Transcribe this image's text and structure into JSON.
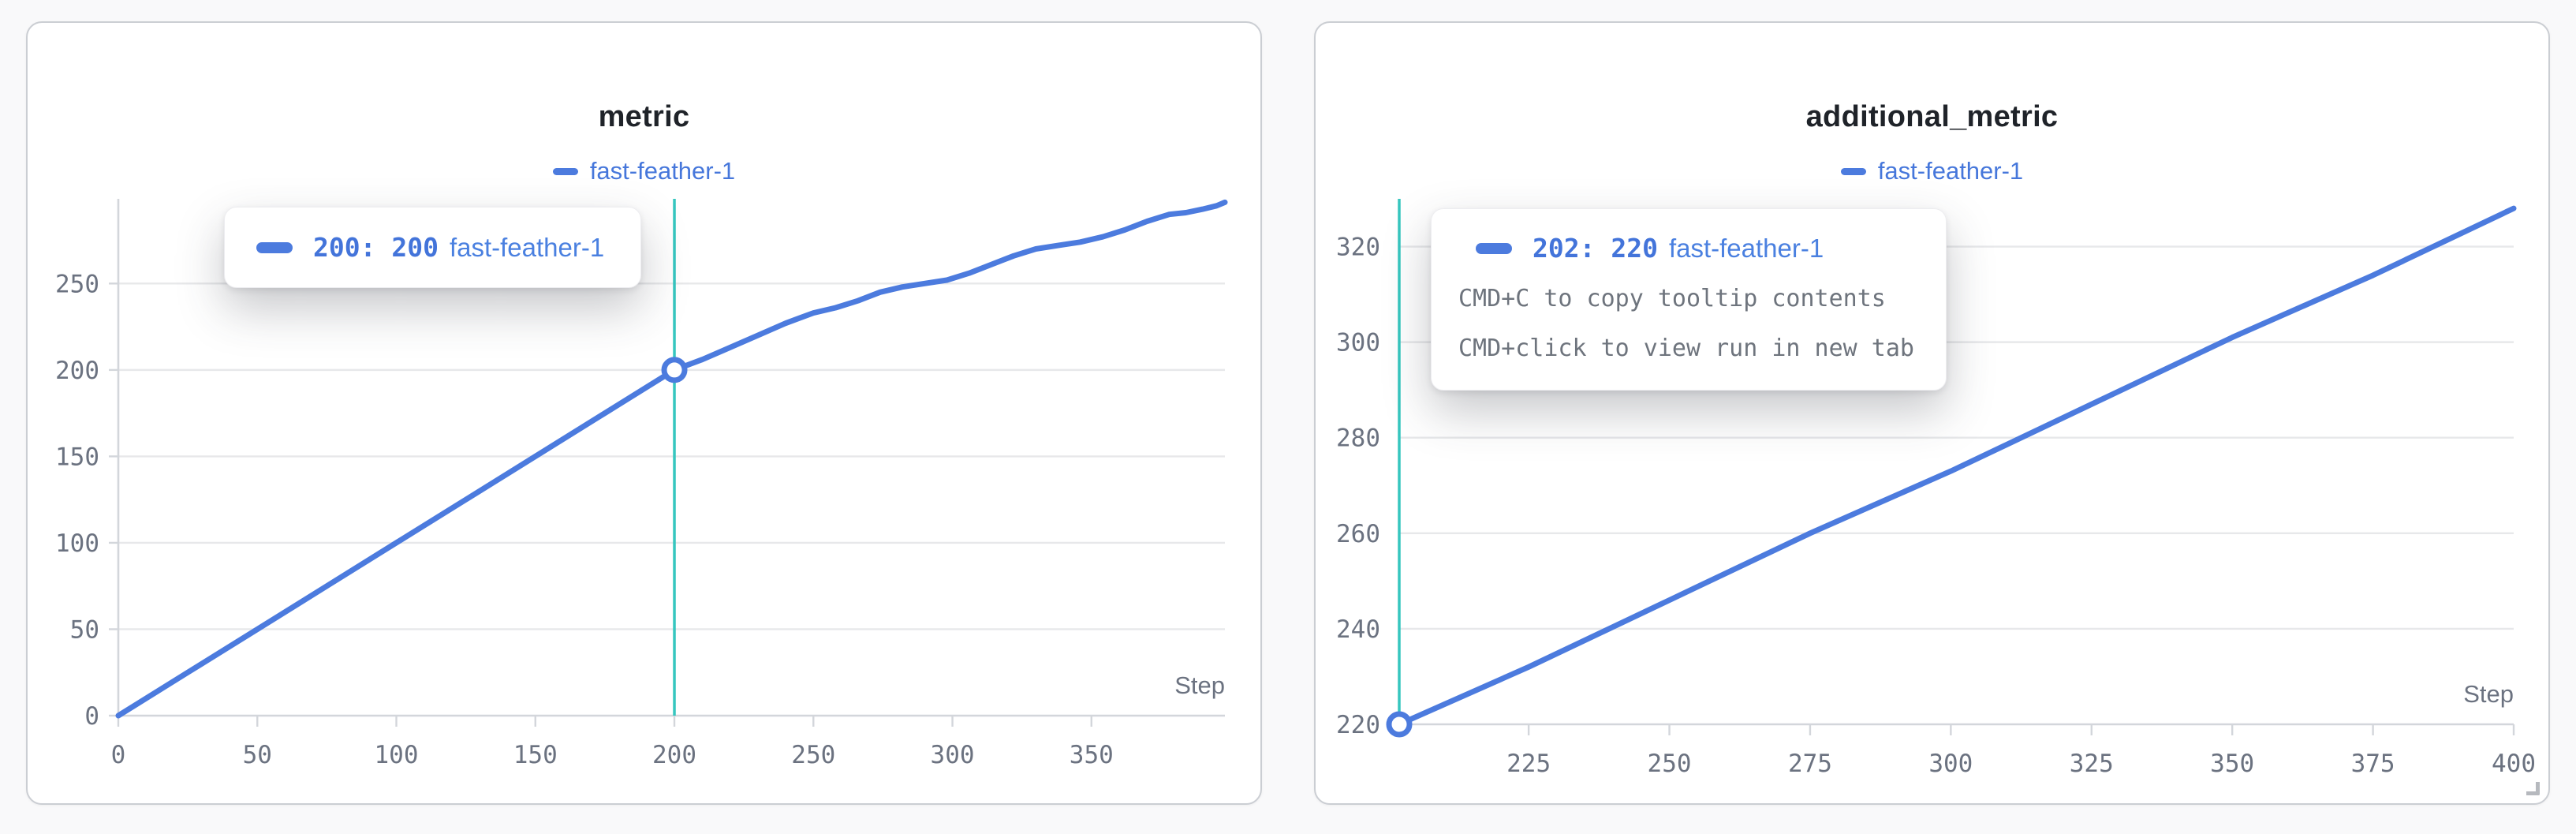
{
  "page": {
    "background": "#f9f9fa"
  },
  "colors": {
    "run_blue": "#4c7bde",
    "tooltip_value_blue": "#4374da",
    "crosshair_teal": "#36c6bf",
    "grid_gray": "#e7e8ea",
    "axis_gray": "#d3d6db",
    "tick_text_gray": "#6b7280",
    "helper_text_gray": "#6e747d",
    "title_dark": "#1f2329"
  },
  "panels": [
    {
      "title": "metric",
      "legend": {
        "label": "fast-feather-1",
        "swatch": "run-line-swatch"
      },
      "xlabel": "Step",
      "tooltip": {
        "value": "200: 200",
        "run": "fast-feather-1"
      }
    },
    {
      "title": "additional_metric",
      "legend": {
        "label": "fast-feather-1",
        "swatch": "run-line-swatch"
      },
      "xlabel": "Step",
      "tooltip": {
        "value": "202: 220",
        "run": "fast-feather-1",
        "helper_1": "CMD+C to copy tooltip contents",
        "helper_2": "CMD+click to view run in new tab"
      }
    }
  ],
  "chart_data": [
    {
      "type": "line",
      "title": "metric",
      "xlabel": "Step",
      "legend": [
        "fast-feather-1"
      ],
      "legend_position": "top-center",
      "grid": "horizontal-only",
      "xlim": [
        0,
        398
      ],
      "ylim": [
        0,
        299
      ],
      "xticks": [
        0,
        50,
        100,
        150,
        200,
        250,
        300,
        350
      ],
      "yticks": [
        0,
        50,
        100,
        150,
        200,
        250
      ],
      "crosshair": {
        "x": 200,
        "color": "#36c6bf"
      },
      "hover_marker": {
        "x": 200,
        "y": 200
      },
      "series": [
        {
          "name": "fast-feather-1",
          "color": "#4c7bde",
          "points": [
            [
              0,
              0
            ],
            [
              25,
              25
            ],
            [
              50,
              50
            ],
            [
              75,
              75
            ],
            [
              100,
              100
            ],
            [
              125,
              125
            ],
            [
              150,
              150
            ],
            [
              175,
              175
            ],
            [
              200,
              200
            ],
            [
              210,
              206
            ],
            [
              220,
              213
            ],
            [
              230,
              220
            ],
            [
              240,
              227
            ],
            [
              250,
              233
            ],
            [
              258,
              236
            ],
            [
              266,
              240
            ],
            [
              274,
              245
            ],
            [
              282,
              248
            ],
            [
              290,
              250
            ],
            [
              298,
              252
            ],
            [
              306,
              256
            ],
            [
              314,
              261
            ],
            [
              322,
              266
            ],
            [
              330,
              270
            ],
            [
              338,
              272
            ],
            [
              346,
              274
            ],
            [
              354,
              277
            ],
            [
              362,
              281
            ],
            [
              370,
              286
            ],
            [
              378,
              290
            ],
            [
              384,
              291
            ],
            [
              390,
              293
            ],
            [
              395,
              295
            ],
            [
              398,
              297
            ]
          ]
        }
      ]
    },
    {
      "type": "line",
      "title": "additional_metric",
      "xlabel": "Step",
      "legend": [
        "fast-feather-1"
      ],
      "legend_position": "top-center",
      "grid": "horizontal-only",
      "xlim": [
        202,
        400
      ],
      "ylim": [
        220,
        330
      ],
      "xticks": [
        225,
        250,
        275,
        300,
        325,
        350,
        375,
        400
      ],
      "yticks": [
        220,
        240,
        260,
        280,
        300,
        320
      ],
      "crosshair": {
        "x": 202,
        "color": "#36c6bf"
      },
      "hover_marker": {
        "x": 202,
        "y": 220
      },
      "series": [
        {
          "name": "fast-feather-1",
          "color": "#4c7bde",
          "points": [
            [
              202,
              220
            ],
            [
              225,
              232
            ],
            [
              250,
              246
            ],
            [
              275,
              260
            ],
            [
              300,
              273
            ],
            [
              325,
              287
            ],
            [
              350,
              301
            ],
            [
              375,
              314
            ],
            [
              400,
              328
            ]
          ]
        }
      ]
    }
  ]
}
